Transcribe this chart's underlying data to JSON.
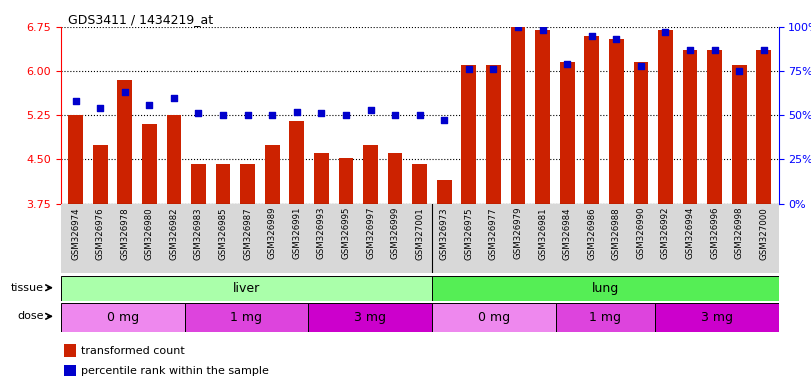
{
  "title": "GDS3411 / 1434219_at",
  "samples": [
    "GSM326974",
    "GSM326976",
    "GSM326978",
    "GSM326980",
    "GSM326982",
    "GSM326983",
    "GSM326985",
    "GSM326987",
    "GSM326989",
    "GSM326991",
    "GSM326993",
    "GSM326995",
    "GSM326997",
    "GSM326999",
    "GSM327001",
    "GSM326973",
    "GSM326975",
    "GSM326977",
    "GSM326979",
    "GSM326981",
    "GSM326984",
    "GSM326986",
    "GSM326988",
    "GSM326990",
    "GSM326992",
    "GSM326994",
    "GSM326996",
    "GSM326998",
    "GSM327000"
  ],
  "bar_values": [
    5.25,
    4.75,
    5.85,
    5.1,
    5.25,
    4.42,
    4.42,
    4.42,
    4.75,
    5.15,
    4.6,
    4.52,
    4.75,
    4.6,
    4.42,
    4.15,
    6.1,
    6.1,
    6.75,
    6.7,
    6.15,
    6.6,
    6.55,
    6.15,
    6.7,
    6.35,
    6.35,
    6.1,
    6.35
  ],
  "dot_values_pct": [
    58,
    54,
    63,
    56,
    60,
    51,
    50,
    50,
    50,
    52,
    51,
    50,
    53,
    50,
    50,
    47,
    76,
    76,
    100,
    98,
    79,
    95,
    93,
    78,
    97,
    87,
    87,
    75,
    87
  ],
  "ylim_left": [
    3.75,
    6.75
  ],
  "ylim_right": [
    0,
    100
  ],
  "yticks_left": [
    3.75,
    4.5,
    5.25,
    6.0,
    6.75
  ],
  "yticks_right": [
    0,
    25,
    50,
    75,
    100
  ],
  "bar_color": "#CC2200",
  "dot_color": "#0000CC",
  "tissue_liver_label": "liver",
  "tissue_lung_label": "lung",
  "tissue_liver_color": "#AAFFAA",
  "tissue_lung_color": "#55EE55",
  "dose_colors": [
    "#EE88EE",
    "#DD44DD",
    "#CC00CC",
    "#EE88EE",
    "#DD44DD",
    "#CC00CC"
  ],
  "dose_labels": [
    "0 mg",
    "1 mg",
    "3 mg",
    "0 mg",
    "1 mg",
    "3 mg"
  ],
  "dose_ranges_idx": [
    [
      0,
      5
    ],
    [
      5,
      10
    ],
    [
      10,
      15
    ],
    [
      15,
      20
    ],
    [
      20,
      24
    ],
    [
      24,
      29
    ]
  ],
  "n_liver": 15,
  "n_lung": 14,
  "legend_bar_label": "transformed count",
  "legend_dot_label": "percentile rank within the sample"
}
